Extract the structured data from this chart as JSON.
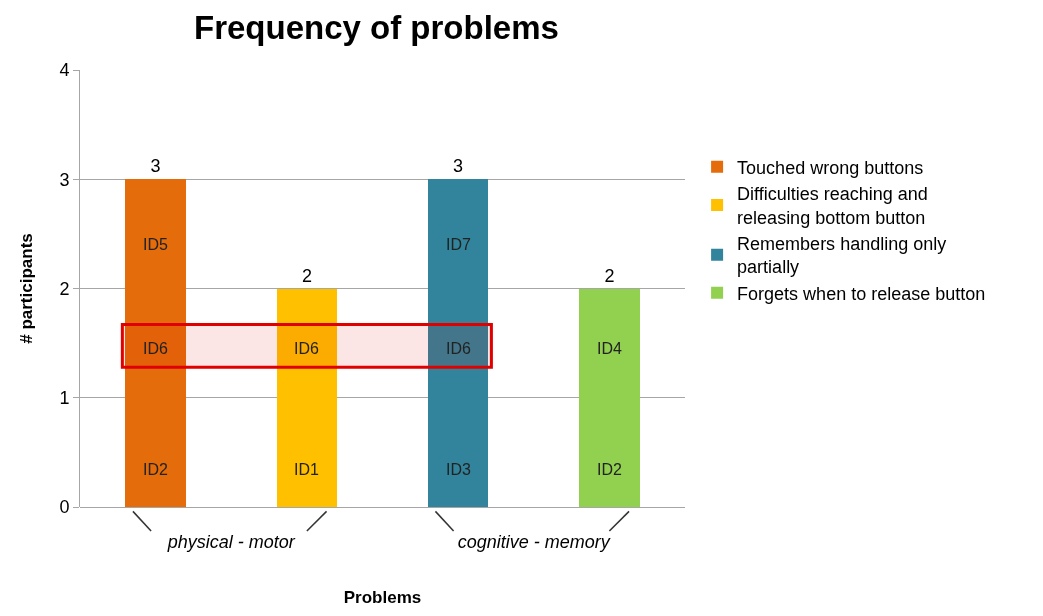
{
  "chart_data": {
    "type": "bar",
    "title": "Frequency of problems",
    "xlabel": "Problems",
    "ylabel": "# participants",
    "categories": [
      "physical - motor",
      "cognitive - memory"
    ],
    "series": [
      {
        "name": "Touched wrong buttons",
        "color": "#e46c0a",
        "values": [
          3,
          null
        ]
      },
      {
        "name": "Difficulties reaching and releasing bottom button",
        "color": "#ffc000",
        "values": [
          2,
          null
        ]
      },
      {
        "name": "Remembers handling only partially",
        "color": "#31849b",
        "values": [
          null,
          3
        ]
      },
      {
        "name": "Forgets when to release button",
        "color": "#92d050",
        "values": [
          null,
          2
        ]
      }
    ],
    "ylim": [
      0,
      4
    ],
    "yticks": [
      0,
      1,
      2,
      3,
      4
    ],
    "grid": "y",
    "legend": "right",
    "data_labels": true,
    "annotations": [
      "ID5",
      "ID6",
      "ID2",
      "ID6",
      "ID1",
      "ID7",
      "ID6",
      "ID3",
      "ID4",
      "ID2"
    ],
    "bands": [
      {
        "axis": "y",
        "from": 1.28,
        "to": 1.67,
        "color": "#e00000"
      }
    ]
  }
}
